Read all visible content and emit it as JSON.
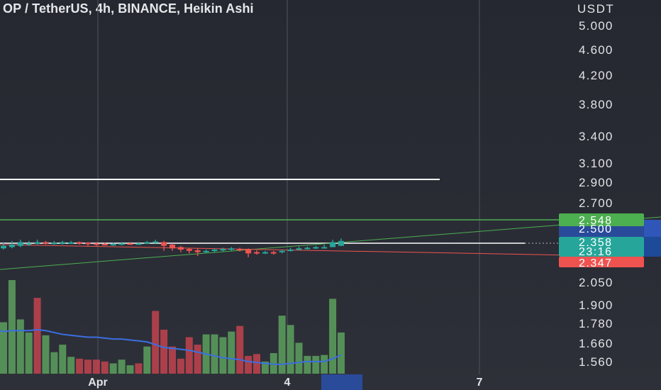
{
  "title": "OP / TetherUS, 4h, BINANCE, Heikin Ashi",
  "chart_data": {
    "type": "candlestick",
    "symbol": "OP / TetherUS",
    "interval": "4h",
    "exchange": "BINANCE",
    "candle_style": "Heikin Ashi",
    "currency": "USDT",
    "y_scale": "log",
    "y_ticks": [
      "5.000",
      "4.600",
      "4.200",
      "3.800",
      "3.400",
      "3.100",
      "2.900",
      "2.700",
      "2.500",
      "2.050",
      "1.900",
      "1.780",
      "1.660",
      "1.560"
    ],
    "x_ticks": [
      "Apr",
      "4",
      "7"
    ],
    "candles": [
      {
        "o": 2.33,
        "c": 2.31,
        "h": 2.36,
        "l": 2.3,
        "dir": "up"
      },
      {
        "o": 2.32,
        "c": 2.34,
        "h": 2.37,
        "l": 2.31,
        "dir": "up"
      },
      {
        "o": 2.33,
        "c": 2.36,
        "h": 2.38,
        "l": 2.32,
        "dir": "up"
      },
      {
        "o": 2.34,
        "c": 2.35,
        "h": 2.37,
        "l": 2.33,
        "dir": "up"
      },
      {
        "o": 2.35,
        "c": 2.36,
        "h": 2.38,
        "l": 2.34,
        "dir": "up"
      },
      {
        "o": 2.36,
        "c": 2.35,
        "h": 2.37,
        "l": 2.34,
        "dir": "down"
      },
      {
        "o": 2.35,
        "c": 2.355,
        "h": 2.37,
        "l": 2.34,
        "dir": "up"
      },
      {
        "o": 2.35,
        "c": 2.36,
        "h": 2.37,
        "l": 2.34,
        "dir": "up"
      },
      {
        "o": 2.355,
        "c": 2.358,
        "h": 2.37,
        "l": 2.345,
        "dir": "up"
      },
      {
        "o": 2.36,
        "c": 2.35,
        "h": 2.365,
        "l": 2.34,
        "dir": "down"
      },
      {
        "o": 2.355,
        "c": 2.345,
        "h": 2.36,
        "l": 2.33,
        "dir": "down"
      },
      {
        "o": 2.35,
        "c": 2.34,
        "h": 2.36,
        "l": 2.33,
        "dir": "down"
      },
      {
        "o": 2.345,
        "c": 2.34,
        "h": 2.355,
        "l": 2.335,
        "dir": "down"
      },
      {
        "o": 2.34,
        "c": 2.345,
        "h": 2.355,
        "l": 2.33,
        "dir": "up"
      },
      {
        "o": 2.345,
        "c": 2.35,
        "h": 2.36,
        "l": 2.335,
        "dir": "up"
      },
      {
        "o": 2.35,
        "c": 2.345,
        "h": 2.36,
        "l": 2.34,
        "dir": "down"
      },
      {
        "o": 2.35,
        "c": 2.35,
        "h": 2.36,
        "l": 2.34,
        "dir": "up"
      },
      {
        "o": 2.35,
        "c": 2.36,
        "h": 2.37,
        "l": 2.345,
        "dir": "up"
      },
      {
        "o": 2.36,
        "c": 2.365,
        "h": 2.38,
        "l": 2.35,
        "dir": "up"
      },
      {
        "o": 2.36,
        "c": 2.33,
        "h": 2.37,
        "l": 2.29,
        "dir": "down"
      },
      {
        "o": 2.34,
        "c": 2.31,
        "h": 2.35,
        "l": 2.29,
        "dir": "down"
      },
      {
        "o": 2.32,
        "c": 2.3,
        "h": 2.33,
        "l": 2.28,
        "dir": "down"
      },
      {
        "o": 2.305,
        "c": 2.29,
        "h": 2.315,
        "l": 2.27,
        "dir": "down"
      },
      {
        "o": 2.295,
        "c": 2.28,
        "h": 2.31,
        "l": 2.25,
        "dir": "down"
      },
      {
        "o": 2.285,
        "c": 2.29,
        "h": 2.3,
        "l": 2.27,
        "dir": "up"
      },
      {
        "o": 2.29,
        "c": 2.3,
        "h": 2.31,
        "l": 2.28,
        "dir": "up"
      },
      {
        "o": 2.295,
        "c": 2.305,
        "h": 2.315,
        "l": 2.285,
        "dir": "up"
      },
      {
        "o": 2.3,
        "c": 2.31,
        "h": 2.32,
        "l": 2.29,
        "dir": "up"
      },
      {
        "o": 2.305,
        "c": 2.3,
        "h": 2.315,
        "l": 2.285,
        "dir": "down"
      },
      {
        "o": 2.3,
        "c": 2.27,
        "h": 2.31,
        "l": 2.24,
        "dir": "down"
      },
      {
        "o": 2.28,
        "c": 2.27,
        "h": 2.295,
        "l": 2.26,
        "dir": "down"
      },
      {
        "o": 2.275,
        "c": 2.28,
        "h": 2.29,
        "l": 2.265,
        "dir": "up"
      },
      {
        "o": 2.28,
        "c": 2.275,
        "h": 2.29,
        "l": 2.26,
        "dir": "down"
      },
      {
        "o": 2.28,
        "c": 2.29,
        "h": 2.3,
        "l": 2.27,
        "dir": "up"
      },
      {
        "o": 2.29,
        "c": 2.3,
        "h": 2.315,
        "l": 2.285,
        "dir": "up"
      },
      {
        "o": 2.3,
        "c": 2.31,
        "h": 2.325,
        "l": 2.295,
        "dir": "up"
      },
      {
        "o": 2.305,
        "c": 2.315,
        "h": 2.325,
        "l": 2.3,
        "dir": "up"
      },
      {
        "o": 2.31,
        "c": 2.32,
        "h": 2.33,
        "l": 2.305,
        "dir": "up"
      },
      {
        "o": 2.32,
        "c": 2.32,
        "h": 2.34,
        "l": 2.31,
        "dir": "up"
      },
      {
        "o": 2.32,
        "c": 2.36,
        "h": 2.38,
        "l": 2.32,
        "dir": "up"
      },
      {
        "o": 2.33,
        "c": 2.37,
        "h": 2.39,
        "l": 2.33,
        "dir": "up"
      }
    ],
    "volume": {
      "bars": [
        {
          "v": 0.55,
          "dir": "up"
        },
        {
          "v": 1.0,
          "dir": "up"
        },
        {
          "v": 0.58,
          "dir": "up"
        },
        {
          "v": 0.44,
          "dir": "up"
        },
        {
          "v": 0.81,
          "dir": "down"
        },
        {
          "v": 0.41,
          "dir": "up"
        },
        {
          "v": 0.23,
          "dir": "up"
        },
        {
          "v": 0.31,
          "dir": "up"
        },
        {
          "v": 0.18,
          "dir": "up"
        },
        {
          "v": 0.16,
          "dir": "down"
        },
        {
          "v": 0.15,
          "dir": "down"
        },
        {
          "v": 0.15,
          "dir": "down"
        },
        {
          "v": 0.13,
          "dir": "down"
        },
        {
          "v": 0.11,
          "dir": "up"
        },
        {
          "v": 0.15,
          "dir": "up"
        },
        {
          "v": 0.09,
          "dir": "up"
        },
        {
          "v": 0.11,
          "dir": "down"
        },
        {
          "v": 0.29,
          "dir": "up"
        },
        {
          "v": 0.67,
          "dir": "down"
        },
        {
          "v": 0.47,
          "dir": "down"
        },
        {
          "v": 0.29,
          "dir": "down"
        },
        {
          "v": 0.16,
          "dir": "down"
        },
        {
          "v": 0.39,
          "dir": "down"
        },
        {
          "v": 0.31,
          "dir": "down"
        },
        {
          "v": 0.42,
          "dir": "up"
        },
        {
          "v": 0.42,
          "dir": "up"
        },
        {
          "v": 0.39,
          "dir": "up"
        },
        {
          "v": 0.45,
          "dir": "up"
        },
        {
          "v": 0.51,
          "dir": "down"
        },
        {
          "v": 0.19,
          "dir": "down"
        },
        {
          "v": 0.21,
          "dir": "down"
        },
        {
          "v": 0.13,
          "dir": "up"
        },
        {
          "v": 0.22,
          "dir": "up"
        },
        {
          "v": 0.62,
          "dir": "up"
        },
        {
          "v": 0.52,
          "dir": "up"
        },
        {
          "v": 0.33,
          "dir": "up"
        },
        {
          "v": 0.19,
          "dir": "up"
        },
        {
          "v": 0.19,
          "dir": "up"
        },
        {
          "v": 0.2,
          "dir": "up"
        },
        {
          "v": 0.8,
          "dir": "up"
        },
        {
          "v": 0.44,
          "dir": "up"
        }
      ],
      "moving_average": [
        0.45,
        0.46,
        0.46,
        0.46,
        0.47,
        0.46,
        0.44,
        0.42,
        0.41,
        0.4,
        0.39,
        0.39,
        0.38,
        0.37,
        0.37,
        0.36,
        0.35,
        0.34,
        0.31,
        0.28,
        0.27,
        0.26,
        0.25,
        0.23,
        0.21,
        0.19,
        0.17,
        0.16,
        0.15,
        0.13,
        0.12,
        0.11,
        0.1,
        0.1,
        0.11,
        0.12,
        0.13,
        0.13,
        0.13,
        0.16,
        0.2
      ]
    },
    "horizontal_lines": [
      {
        "price": 2.95,
        "color": "#ffffff"
      },
      {
        "price": 2.548,
        "color": "#4caf50"
      },
      {
        "price": 2.358,
        "color": "#ffffff",
        "style": "dashed"
      }
    ],
    "trend_lines": [
      {
        "color": "#4caf50"
      },
      {
        "color": "#ef5350"
      }
    ],
    "price_labels": [
      {
        "text": "2.548",
        "color": "#4caf50"
      },
      {
        "text": "2.500",
        "color": "#1e3a8a"
      },
      {
        "text": "2.358",
        "sub": "23:16",
        "color": "#26a69a"
      },
      {
        "text": "2.347",
        "color": "#ef5350"
      }
    ]
  },
  "colors": {
    "up": "#26a69a",
    "down": "#ef5350",
    "up_volume": "#5a9a5c",
    "down_volume": "#b9424e",
    "volume_ma": "#3a6fe0",
    "grid": "#4a4d56",
    "text": "#e3e4e7",
    "label_blue": "#2a4a9a"
  }
}
